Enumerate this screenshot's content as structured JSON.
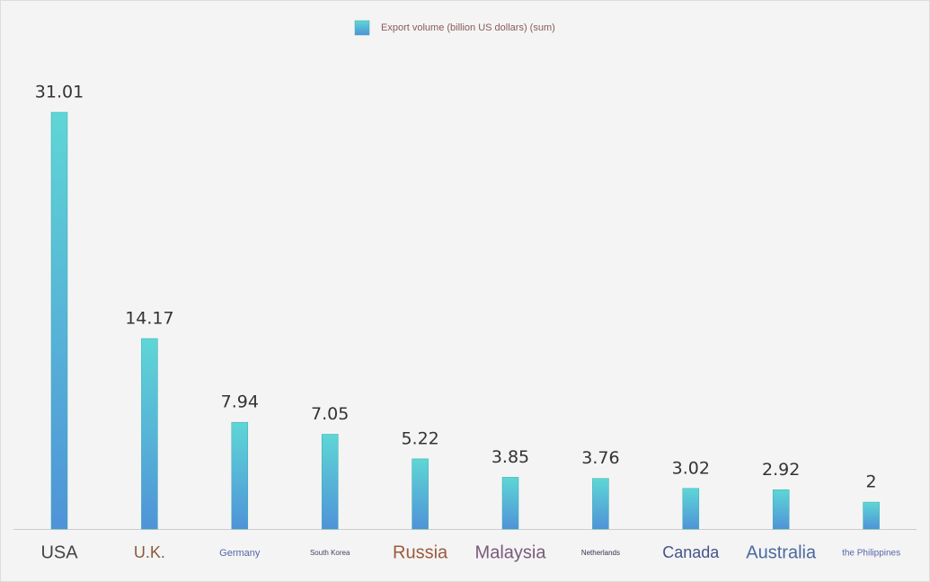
{
  "chart_data": {
    "type": "bar",
    "legend": "Export volume (billion US dollars) (sum)",
    "categories": [
      "USA",
      "U.K.",
      "Germany",
      "South Korea",
      "Russia",
      "Malaysia",
      "Netherlands",
      "Canada",
      "Australia",
      "the Philippines"
    ],
    "values": [
      31.01,
      14.17,
      7.94,
      7.05,
      5.22,
      3.85,
      3.76,
      3.02,
      2.92,
      2
    ],
    "color": [
      "#5ed6d6",
      "#4f93d8"
    ]
  }
}
